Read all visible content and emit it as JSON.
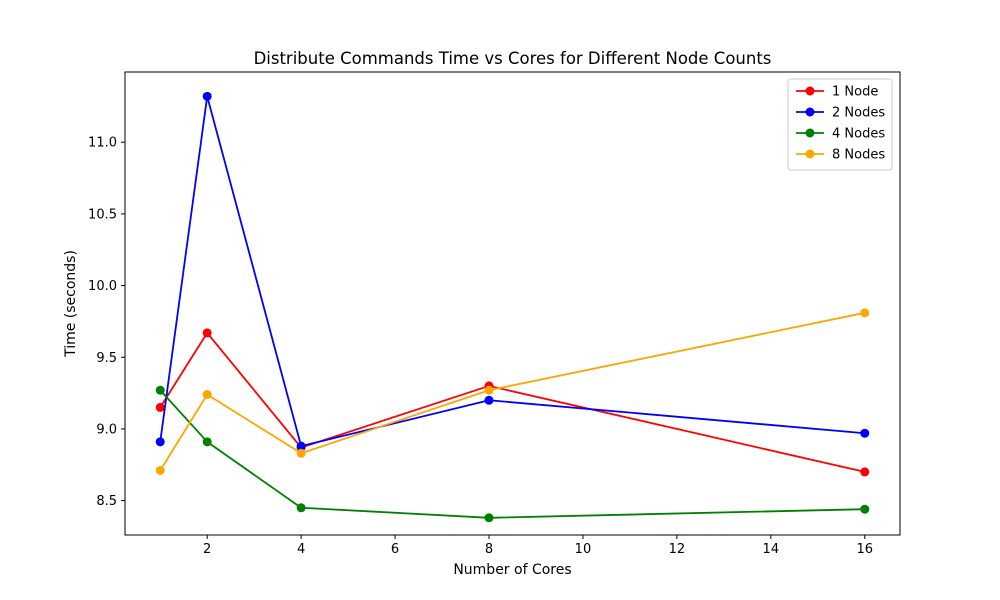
{
  "chart_data": {
    "type": "line",
    "title": "Distribute Commands Time vs Cores for Different Node Counts",
    "xlabel": "Number of Cores",
    "ylabel": "Time (seconds)",
    "xlim": [
      0.25,
      16.75
    ],
    "ylim": [
      8.26,
      11.49
    ],
    "xticks": [
      2,
      4,
      6,
      8,
      10,
      12,
      14,
      16
    ],
    "xtick_labels": [
      "2",
      "4",
      "6",
      "8",
      "10",
      "12",
      "14",
      "16"
    ],
    "yticks": [
      8.5,
      9.0,
      9.5,
      10.0,
      10.5,
      11.0
    ],
    "ytick_labels": [
      "8.5",
      "9.0",
      "9.5",
      "10.0",
      "10.5",
      "11.0"
    ],
    "grid": false,
    "legend_position": "top-right",
    "x": [
      1,
      2,
      4,
      8,
      16
    ],
    "series": [
      {
        "name": "1 Node",
        "color": "#ff0000",
        "values": [
          9.15,
          9.67,
          8.87,
          9.3,
          8.7
        ]
      },
      {
        "name": "2 Nodes",
        "color": "#0000ff",
        "values": [
          8.91,
          11.32,
          8.88,
          9.2,
          8.97
        ]
      },
      {
        "name": "4 Nodes",
        "color": "#008000",
        "values": [
          9.27,
          8.91,
          8.45,
          8.38,
          8.44
        ]
      },
      {
        "name": "8 Nodes",
        "color": "#ffa500",
        "values": [
          8.71,
          9.24,
          8.83,
          9.27,
          9.81
        ]
      }
    ]
  }
}
